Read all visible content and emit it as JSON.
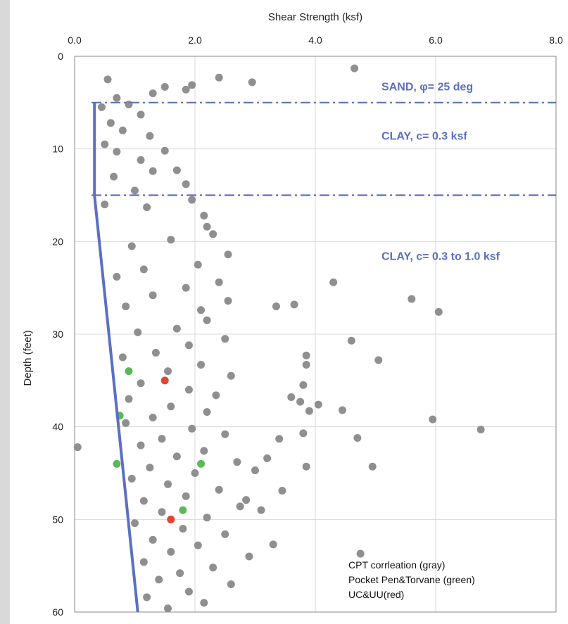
{
  "chart_data": {
    "type": "scatter",
    "title": "",
    "xlabel": "Shear Strength (ksf)",
    "ylabel": "Depth (feet)",
    "x_axis_position": "top",
    "xlim": [
      0,
      8
    ],
    "ylim": [
      0,
      60
    ],
    "y_inverted": true,
    "x_ticks": [
      "0.0",
      "2.0",
      "4.0",
      "6.0",
      "8.0"
    ],
    "y_ticks": [
      "0",
      "10",
      "20",
      "30",
      "40",
      "50",
      "60"
    ],
    "grid": true,
    "series": [
      {
        "name": "CPT corrleation (gray)",
        "color": "#7f7f7f",
        "marker": "circle",
        "points": [
          [
            4.65,
            1.3
          ],
          [
            2.4,
            2.3
          ],
          [
            2.95,
            2.8
          ],
          [
            0.55,
            2.5
          ],
          [
            1.95,
            3.1
          ],
          [
            1.85,
            3.6
          ],
          [
            1.5,
            3.3
          ],
          [
            1.3,
            4.0
          ],
          [
            0.7,
            4.5
          ],
          [
            0.45,
            5.5
          ],
          [
            0.9,
            5.2
          ],
          [
            1.1,
            6.3
          ],
          [
            0.6,
            7.2
          ],
          [
            0.8,
            8.0
          ],
          [
            1.25,
            8.6
          ],
          [
            0.5,
            9.5
          ],
          [
            0.7,
            10.3
          ],
          [
            1.1,
            11.2
          ],
          [
            1.5,
            10.2
          ],
          [
            1.3,
            12.4
          ],
          [
            0.65,
            13.0
          ],
          [
            1.7,
            12.3
          ],
          [
            1.85,
            13.8
          ],
          [
            1.0,
            14.5
          ],
          [
            1.95,
            15.5
          ],
          [
            1.2,
            16.3
          ],
          [
            2.15,
            17.2
          ],
          [
            0.5,
            16.0
          ],
          [
            2.2,
            18.4
          ],
          [
            2.3,
            19.2
          ],
          [
            1.6,
            19.8
          ],
          [
            0.95,
            20.5
          ],
          [
            2.55,
            21.4
          ],
          [
            2.05,
            22.5
          ],
          [
            1.15,
            23.0
          ],
          [
            0.7,
            23.8
          ],
          [
            2.4,
            24.4
          ],
          [
            1.85,
            25.0
          ],
          [
            1.3,
            25.8
          ],
          [
            2.55,
            26.4
          ],
          [
            2.1,
            27.4
          ],
          [
            0.85,
            27.0
          ],
          [
            2.2,
            28.5
          ],
          [
            1.7,
            29.4
          ],
          [
            1.05,
            29.8
          ],
          [
            2.5,
            30.5
          ],
          [
            1.9,
            31.2
          ],
          [
            1.35,
            32.0
          ],
          [
            0.8,
            32.5
          ],
          [
            2.1,
            33.3
          ],
          [
            1.55,
            34.0
          ],
          [
            2.6,
            34.5
          ],
          [
            1.1,
            35.3
          ],
          [
            1.9,
            36.0
          ],
          [
            2.35,
            36.6
          ],
          [
            0.9,
            37.0
          ],
          [
            1.6,
            37.8
          ],
          [
            2.2,
            38.4
          ],
          [
            1.3,
            39.0
          ],
          [
            0.85,
            39.6
          ],
          [
            1.95,
            40.2
          ],
          [
            2.5,
            40.8
          ],
          [
            1.45,
            41.3
          ],
          [
            1.1,
            42.0
          ],
          [
            2.15,
            42.6
          ],
          [
            1.7,
            43.2
          ],
          [
            2.7,
            43.8
          ],
          [
            1.25,
            44.4
          ],
          [
            2.0,
            45.0
          ],
          [
            0.95,
            45.6
          ],
          [
            1.55,
            46.2
          ],
          [
            2.4,
            46.8
          ],
          [
            1.85,
            47.5
          ],
          [
            1.15,
            48.0
          ],
          [
            2.75,
            48.6
          ],
          [
            1.45,
            49.2
          ],
          [
            2.2,
            49.8
          ],
          [
            1.0,
            50.4
          ],
          [
            1.8,
            51.0
          ],
          [
            2.5,
            51.6
          ],
          [
            1.3,
            52.2
          ],
          [
            2.05,
            52.8
          ],
          [
            1.6,
            53.5
          ],
          [
            2.9,
            54.0
          ],
          [
            1.15,
            54.6
          ],
          [
            2.3,
            55.2
          ],
          [
            1.75,
            55.8
          ],
          [
            1.4,
            56.5
          ],
          [
            2.6,
            57.0
          ],
          [
            1.9,
            57.8
          ],
          [
            1.2,
            58.4
          ],
          [
            2.15,
            59.0
          ],
          [
            1.55,
            59.6
          ],
          [
            3.35,
            27.0
          ],
          [
            3.65,
            26.8
          ],
          [
            4.3,
            24.4
          ],
          [
            5.6,
            26.2
          ],
          [
            6.05,
            27.6
          ],
          [
            4.6,
            30.7
          ],
          [
            3.85,
            32.3
          ],
          [
            3.85,
            33.3
          ],
          [
            5.05,
            32.8
          ],
          [
            3.8,
            35.5
          ],
          [
            3.6,
            36.8
          ],
          [
            3.75,
            37.3
          ],
          [
            3.9,
            38.3
          ],
          [
            4.05,
            37.6
          ],
          [
            4.45,
            38.2
          ],
          [
            5.95,
            39.2
          ],
          [
            6.75,
            40.3
          ],
          [
            3.8,
            40.7
          ],
          [
            4.7,
            41.2
          ],
          [
            3.4,
            41.3
          ],
          [
            3.85,
            44.3
          ],
          [
            4.95,
            44.3
          ],
          [
            0.05,
            42.2
          ],
          [
            4.75,
            53.7
          ],
          [
            3.1,
            49.0
          ],
          [
            3.3,
            52.7
          ],
          [
            3.45,
            46.9
          ],
          [
            2.85,
            47.9
          ],
          [
            3.0,
            44.7
          ],
          [
            3.2,
            43.4
          ]
        ]
      },
      {
        "name": "Pocket Pen&Torvane (green)",
        "color": "#5cb85c",
        "marker": "circle",
        "points": [
          [
            0.9,
            34.0
          ],
          [
            0.75,
            38.8
          ],
          [
            0.7,
            44.0
          ],
          [
            2.1,
            44.0
          ],
          [
            1.8,
            49.0
          ]
        ]
      },
      {
        "name": "UC&UU(red)",
        "color": "#e2452e",
        "marker": "circle",
        "points": [
          [
            1.5,
            35.0
          ],
          [
            1.6,
            50.0
          ]
        ]
      }
    ],
    "trend_line": {
      "color": "#5b6fc4",
      "points": [
        [
          0.33,
          5.0
        ],
        [
          0.33,
          15.0
        ],
        [
          1.05,
          60.0
        ]
      ]
    },
    "boundaries": [
      {
        "depth": 5.0,
        "style": "dash-dot",
        "color": "#5b6fc4"
      },
      {
        "depth": 15.0,
        "style": "dash-dot",
        "color": "#5b6fc4"
      }
    ],
    "annotations": [
      {
        "id": "sand",
        "text": "SAND, φ= 25 deg",
        "x": 5.1,
        "y": 3.7
      },
      {
        "id": "clay-top",
        "text": "CLAY, c= 0.3 ksf",
        "x": 5.1,
        "y": 9.0
      },
      {
        "id": "clay-bottom",
        "text": "CLAY, c= 0.3 to 1.0 ksf",
        "x": 5.1,
        "y": 22.0
      }
    ],
    "legend": {
      "position": "bottom-right",
      "entries": [
        "CPT corrleation (gray)",
        "Pocket Pen&Torvane (green)",
        "UC&UU(red)"
      ]
    }
  }
}
